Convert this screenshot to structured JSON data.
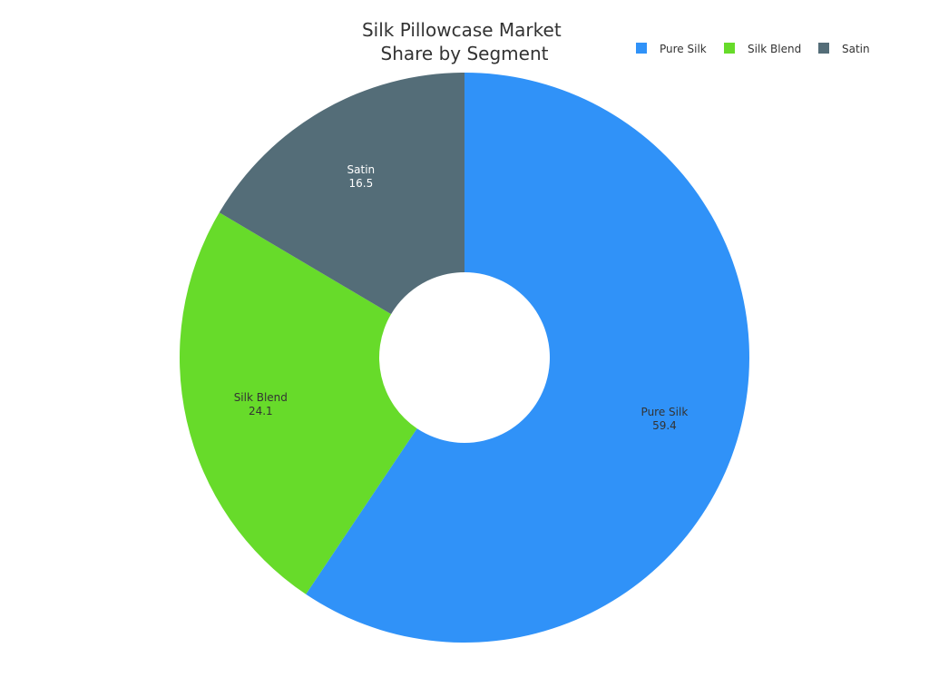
{
  "chart_data": {
    "type": "pie",
    "title": "Silk Pillowcase Market Share by Segment",
    "title_lines": [
      "Silk Pillowcase Market",
      "Share by Segment"
    ],
    "donut": true,
    "legend_position": "top-right",
    "categories": [
      "Pure Silk",
      "Silk Blend",
      "Satin"
    ],
    "values": [
      59.4,
      24.1,
      16.5
    ],
    "value_labels": [
      "59.4",
      "24.1",
      "16.5"
    ],
    "colors": [
      "#3092f8",
      "#67db2a",
      "#546d78"
    ],
    "label_colors": [
      "#333333",
      "#333333",
      "#ffffff"
    ]
  }
}
